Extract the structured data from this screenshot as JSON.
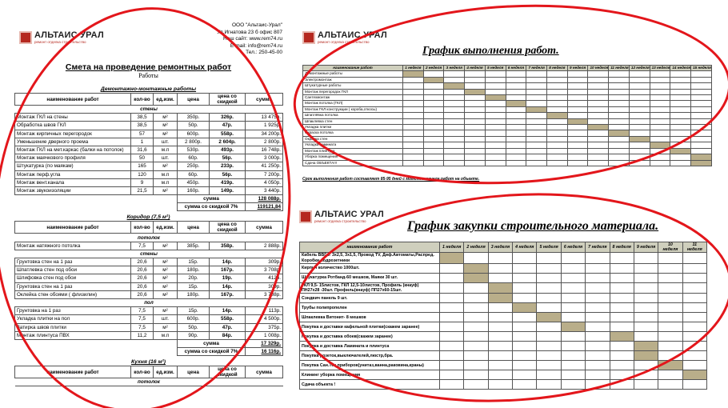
{
  "estimate": {
    "logo": {
      "name": "АЛЬТАИС УРАЛ",
      "tagline": "ремонт отделка строительство"
    },
    "company": [
      "ООО \"Альтаис-Урал\"",
      "Ул.Игнатова 23 б офис 807",
      "Наш сайт: www.rem74.ru",
      "E-mail: info@rem74.ru",
      "Тел.: 250-45-00"
    ],
    "title": "Смета на проведение ремонтных работ",
    "subtitle": "Работы",
    "columns": [
      "наименование работ",
      "кол-во",
      "ед.изм.",
      "цена",
      "цена со скидкой",
      "сумма"
    ],
    "blocks": [
      {
        "heading": "Демонтажно-монтажные работы",
        "groups": [
          {
            "name": "стены",
            "rows": [
              [
                "Монтаж ГКЛ на стены",
                "38,5",
                "м²",
                "350р.",
                "326р.",
                "13 475р."
              ],
              [
                "Обработка швов ГКЛ",
                "38,5",
                "м²",
                "50р.",
                "47р.",
                "1 925р."
              ],
              [
                "Монтаж кирпичных перегородок",
                "57",
                "м²",
                "600р.",
                "558р.",
                "34 200р."
              ],
              [
                "Уменьшение дверного проема",
                "1",
                "шт.",
                "2 800р.",
                "2 604р.",
                "2 800р."
              ],
              [
                "Монтаж ГКЛ на мет.каркас (балки на потолок)",
                "31,6",
                "м.п",
                "530р.",
                "493р.",
                "16 748р."
              ],
              [
                "Монтаж маячкового профиля",
                "50",
                "шт.",
                "60р.",
                "56р.",
                "3 000р."
              ],
              [
                "Штукатурка (по маякам)",
                "165",
                "м²",
                "250р.",
                "233р.",
                "41 250р."
              ],
              [
                "Монтаж перф.угла",
                "120",
                "м.п",
                "60р.",
                "56р.",
                "7 200р."
              ],
              [
                "Монтаж вент.канала",
                "9",
                "м.п",
                "450р.",
                "419р.",
                "4 050р."
              ],
              [
                "Монтаж звукоизоляции",
                "21,5",
                "м²",
                "160р.",
                "149р.",
                "3 440р."
              ]
            ]
          }
        ],
        "totals": [
          [
            "сумма",
            "128 088р."
          ],
          [
            "сумма со скидкой 7%",
            "119121,84"
          ]
        ]
      },
      {
        "heading": "Коридор (7,5 м²)",
        "groups": [
          {
            "name": "потолок",
            "rows": [
              [
                "Монтаж натяжного потолка",
                "7,5",
                "м²",
                "385р.",
                "358р.",
                "2 888р."
              ]
            ]
          },
          {
            "name": "стены",
            "rows": [
              [
                "Грунтовка стен на 1 раз",
                "20,6",
                "м²",
                "15р.",
                "14р.",
                "309р."
              ],
              [
                "Шпатлевка стен под обои",
                "20,6",
                "м²",
                "180р.",
                "167р.",
                "3 708р."
              ],
              [
                "Шлифовка стен под обои",
                "20,6",
                "м²",
                "20р.",
                "19р.",
                "412р."
              ],
              [
                "Грунтовка стен на 1 раз",
                "20,6",
                "м²",
                "15р.",
                "14р.",
                "309р."
              ],
              [
                "Оклейка стен обоями ( флизилин)",
                "20,6",
                "м²",
                "180р.",
                "167р.",
                "3 708р."
              ]
            ]
          },
          {
            "name": "пол",
            "rows": [
              [
                "Грунтовка на 1 раз",
                "7,5",
                "м²",
                "15р.",
                "14р.",
                "113р."
              ],
              [
                "Укладка плитки на пол",
                "7,5",
                "шт.",
                "600р.",
                "558р.",
                "4 500р."
              ],
              [
                "Затирка швов плитки",
                "7,5",
                "м²",
                "50р.",
                "47р.",
                "375р."
              ],
              [
                "Монтаж плинтуса ПВХ",
                "11,2",
                "м.п",
                "90р.",
                "84р.",
                "1 008р."
              ]
            ]
          }
        ],
        "totals": [
          [
            "сумма",
            "17 329р."
          ],
          [
            "сумма со скидкой 7%",
            "16 116р."
          ]
        ]
      },
      {
        "heading": "Кухня (16 м²)",
        "groups": [
          {
            "name": "потолок",
            "rows": []
          }
        ],
        "totals": []
      }
    ]
  },
  "work_schedule": {
    "logo": {
      "name": "АЛЬТАИС УРАЛ",
      "tagline": "ремонт отделка строительство"
    },
    "title": "График выполнения работ.",
    "corner": "наименование работ",
    "weeks": [
      "1 неделя",
      "2 неделя",
      "3 неделя",
      "4 неделя",
      "5 неделя",
      "6 неделя",
      "7 неделя",
      "8 неделя",
      "9 неделя",
      "10 неделя",
      "11 неделя",
      "12 неделя",
      "13 неделя",
      "14 неделя",
      "15 неделя"
    ],
    "tasks": [
      {
        "name": "Демонтажные работы",
        "week": 1
      },
      {
        "name": "Электромонтаж",
        "week": 2
      },
      {
        "name": "Штукатурные работы",
        "week": 3
      },
      {
        "name": "Монтаж перегородок ГКЛ",
        "week": 4
      },
      {
        "name": "Сантехмонтаж",
        "week": 5
      },
      {
        "name": "Монтаж потолка (ГКЛ)",
        "week": 6
      },
      {
        "name": "Монтаж ГКЛ конструкции ( короба,откосы)",
        "week": 7
      },
      {
        "name": "Шпатлёвка потолка",
        "week": 8
      },
      {
        "name": "Шпаклевка стен",
        "week": 9
      },
      {
        "name": "Укладка плитки",
        "week": 10
      },
      {
        "name": "Окраска потолка",
        "week": 11
      },
      {
        "name": "Окраска стен",
        "week": 12
      },
      {
        "name": "Укладка ламината",
        "week": 13
      },
      {
        "name": "Монтаж плинтуса",
        "week": 14
      },
      {
        "name": "Уборка помещения",
        "week": 15
      },
      {
        "name": "Сдача ОБЪЕКТА!!!",
        "week": 15
      }
    ],
    "note": "Срок выполнения работ составляет 85-95 дней с момента начала работ на объекте."
  },
  "purchase_schedule": {
    "logo": {
      "name": "АЛЬТАИС УРАЛ",
      "tagline": "ремонт отделка строительство"
    },
    "title": "График закупки строительного материала.",
    "corner": "наименование работ",
    "weeks": [
      "1 неделя",
      "2 неделя",
      "3 неделя",
      "4 неделя",
      "5 неделя",
      "6 неделя",
      "7 неделя",
      "8 неделя",
      "9 неделя",
      "10 неделя",
      "11 неделя"
    ],
    "tasks": [
      {
        "name": "Кабель ВВГнг 3х2,5, 3х1,5, Провод TV, Диф.Автоматы,Распред. Коробки,подрозетники",
        "week": 1
      },
      {
        "name": "Кирпич количество 1000шт.",
        "week": 2
      },
      {
        "name": "Штукатурка Ротбанд-60 мешков, Маяки 30 шт.",
        "week": 2
      },
      {
        "name": "ГКЛ 9,5- 15листов, ГКЛ 12,5-10листов, Профиль (кнауф) ПН27х28 -30шт. Профиль(кнауф) ПП27х60-15шт.",
        "week": 3
      },
      {
        "name": "Сэндвич панель 9 шт.",
        "week": 3
      },
      {
        "name": "Трубы полипропелен",
        "week": 4
      },
      {
        "name": "Шпаклевка Витонит- 8 мешков",
        "week": 5
      },
      {
        "name": "Покупка и доставки кафельной плитки(скажем заранее)",
        "week": 6
      },
      {
        "name": "Покупка и доставка обоев(скажем заранее)",
        "week": 8
      },
      {
        "name": "Покупка и доставка Ламината и плинтуса",
        "week": 9
      },
      {
        "name": "Покупка розеток,выключателей,люстр,бра.",
        "week": 9
      },
      {
        "name": "Покупка Сан.Тех приборов(унитаз,ванна,раковина,краны)",
        "week": 10
      },
      {
        "name": "Клининг уборка помещения",
        "week": 11
      },
      {
        "name": "Сдача объекта !",
        "week": null
      }
    ]
  }
}
